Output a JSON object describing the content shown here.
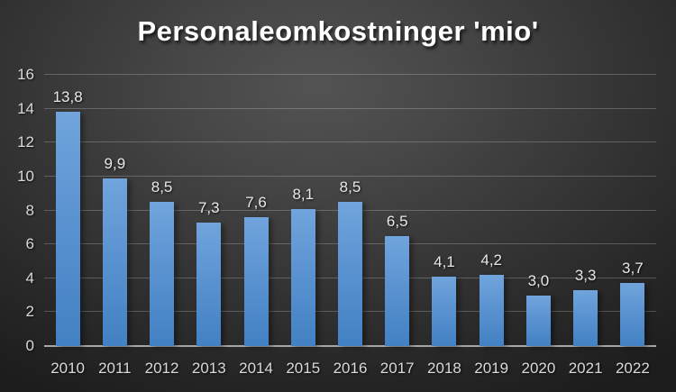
{
  "chart_data": {
    "type": "bar",
    "title": "Personaleomkostninger 'mio'",
    "categories": [
      "2010",
      "2011",
      "2012",
      "2013",
      "2014",
      "2015",
      "2016",
      "2017",
      "2018",
      "2019",
      "2020",
      "2021",
      "2022"
    ],
    "values": [
      13.8,
      9.9,
      8.5,
      7.3,
      7.6,
      8.1,
      8.5,
      6.5,
      4.1,
      4.2,
      3.0,
      3.3,
      3.7
    ],
    "value_labels": [
      "13,8",
      "9,9",
      "8,5",
      "7,3",
      "7,6",
      "8,1",
      "8,5",
      "6,5",
      "4,1",
      "4,2",
      "3,0",
      "3,3",
      "3,7"
    ],
    "xlabel": "",
    "ylabel": "",
    "ylim": [
      0,
      16
    ],
    "yticks": [
      0,
      2,
      4,
      6,
      8,
      10,
      12,
      14,
      16
    ],
    "ytick_labels": [
      "0",
      "2",
      "4",
      "6",
      "8",
      "10",
      "12",
      "14",
      "16"
    ],
    "grid": true,
    "legend": false,
    "decimal_separator": ",",
    "colors": {
      "bar_top": "#71A4DC",
      "bar_bottom": "#4281C3",
      "background_center": "#535353",
      "background_edge": "#1D1D1D",
      "gridline": "rgba(255,255,255,0.22)",
      "axis_line": "#A6A6A6",
      "title_text": "#FFFFFF",
      "tick_text": "#D9D9D9",
      "value_text": "#E8E8E8"
    }
  }
}
